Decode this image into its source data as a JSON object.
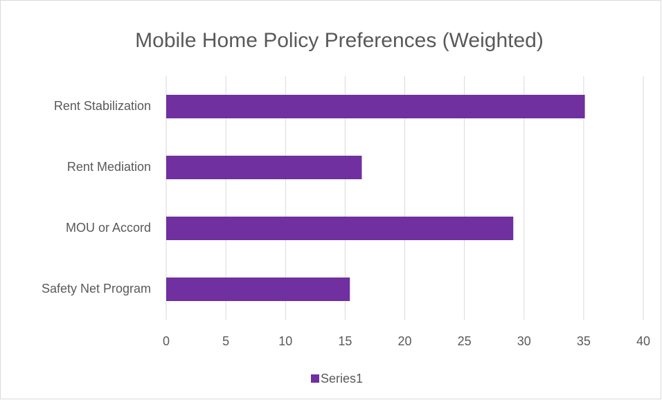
{
  "chart_data": {
    "type": "bar",
    "orientation": "horizontal",
    "title": "Mobile Home Policy Preferences (Weighted)",
    "categories": [
      "Rent Stabilization",
      "Rent Mediation",
      "MOU or Accord",
      "Safety Net Program"
    ],
    "series": [
      {
        "name": "Series1",
        "color": "#7030a0",
        "values": [
          35.1,
          16.4,
          29.1,
          15.4
        ]
      }
    ],
    "xlim": [
      0,
      40
    ],
    "xticks": [
      0,
      5,
      10,
      15,
      20,
      25,
      30,
      35,
      40
    ],
    "grid": true,
    "legend": "bottom"
  }
}
